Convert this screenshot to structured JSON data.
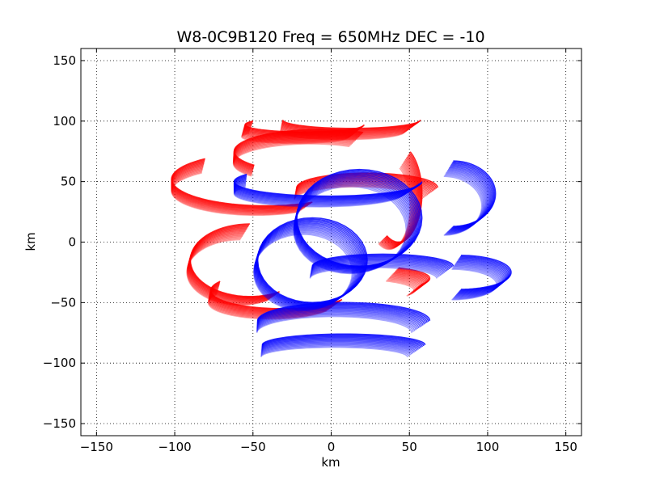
{
  "chart_data": {
    "type": "scatter",
    "title": "W8-0C9B120  Freq = 650MHz  DEC = -10",
    "xlabel": "km",
    "ylabel": "km",
    "xlim": [
      -160,
      160
    ],
    "ylim": [
      -160,
      160
    ],
    "xticks": [
      -150,
      -100,
      -50,
      0,
      50,
      100,
      150
    ],
    "yticks": [
      -150,
      -100,
      -50,
      0,
      50,
      100,
      150
    ],
    "xtick_labels": [
      "−150",
      "−100",
      "−50",
      "0",
      "50",
      "100",
      "150"
    ],
    "ytick_labels": [
      "−150",
      "−100",
      "−50",
      "0",
      "50",
      "100",
      "150"
    ],
    "grid": true,
    "grid_style": "dotted",
    "legend": "none",
    "track_fill": "hollow elliptical arcs (uv-coverage tracks)",
    "track_shape": "ellipse",
    "series": [
      {
        "color": "#ff0000",
        "tracks": [
          {
            "center": [
              10,
              96
            ],
            "rx": 44,
            "ry": 7,
            "arc": [
              180,
              360
            ]
          },
          {
            "center": [
              -20,
              92
            ],
            "rx": 38,
            "ry": 6,
            "arc": [
              150,
              360
            ]
          },
          {
            "center": [
              -45,
              47
            ],
            "rx": 60,
            "ry": 22,
            "arc": [
              130,
              300
            ]
          },
          {
            "center": [
              20,
              40
            ],
            "rx": 45,
            "ry": 12,
            "arc": [
              0,
              180
            ]
          },
          {
            "center": [
              -10,
              70
            ],
            "rx": 55,
            "ry": 18,
            "arc": [
              60,
              220
            ]
          },
          {
            "center": [
              -55,
              -20
            ],
            "rx": 38,
            "ry": 30,
            "arc": [
              90,
              300
            ]
          },
          {
            "center": [
              -35,
              -45
            ],
            "rx": 45,
            "ry": 15,
            "arc": [
              150,
              330
            ]
          },
          {
            "center": [
              20,
              -35
            ],
            "rx": 40,
            "ry": 10,
            "arc": [
              330,
              420
            ]
          },
          {
            "center": [
              40,
              35
            ],
            "rx": 15,
            "ry": 40,
            "arc": [
              240,
              420
            ]
          }
        ]
      },
      {
        "color": "#0000ff",
        "tracks": [
          {
            "center": [
              80,
              -30
            ],
            "rx": 32,
            "ry": 14,
            "arc": [
              270,
              450
            ]
          },
          {
            "center": [
              75,
              35
            ],
            "rx": 27,
            "ry": 27,
            "arc": [
              270,
              450
            ]
          },
          {
            "center": [
              5,
              -90
            ],
            "rx": 52,
            "ry": 9,
            "arc": [
              0,
              180
            ]
          },
          {
            "center": [
              5,
              -70
            ],
            "rx": 55,
            "ry": 15,
            "arc": [
              0,
              180
            ]
          },
          {
            "center": [
              15,
              15
            ],
            "rx": 40,
            "ry": 40,
            "arc": [
              0,
              360
            ]
          },
          {
            "center": [
              -15,
              -20
            ],
            "rx": 35,
            "ry": 35,
            "arc": [
              0,
              360
            ]
          },
          {
            "center": [
              -5,
              45
            ],
            "rx": 60,
            "ry": 12,
            "arc": [
              150,
              360
            ]
          },
          {
            "center": [
              30,
              -25
            ],
            "rx": 45,
            "ry": 10,
            "arc": [
              0,
              180
            ]
          }
        ]
      }
    ]
  }
}
